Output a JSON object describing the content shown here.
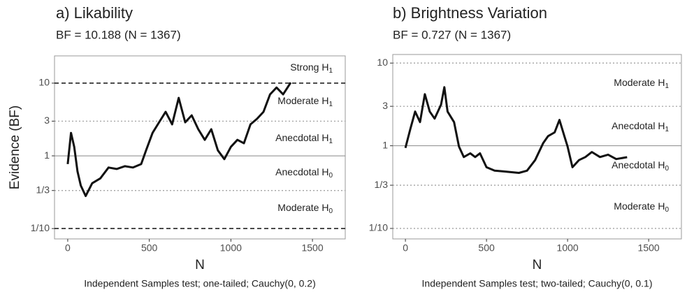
{
  "chart_data": [
    {
      "type": "line",
      "title": "a) Likability",
      "subtitle": "BF = 10.188 (N = 1367)",
      "ylabel": "Evidence (BF)",
      "xlabel": "N",
      "caption": "Independent Samples test; one-tailed; Cauchy(0, 0.2)",
      "log_y": true,
      "color": "#111111",
      "x": [
        0,
        20,
        40,
        60,
        80,
        110,
        150,
        200,
        250,
        300,
        350,
        400,
        450,
        480,
        520,
        560,
        600,
        640,
        680,
        720,
        760,
        800,
        840,
        880,
        920,
        960,
        1000,
        1040,
        1080,
        1120,
        1160,
        1200,
        1240,
        1280,
        1320,
        1367
      ],
      "values": [
        0.77,
        2.07,
        1.33,
        0.61,
        0.39,
        0.28,
        0.42,
        0.49,
        0.69,
        0.66,
        0.72,
        0.69,
        0.77,
        1.19,
        2.07,
        2.89,
        4.03,
        2.71,
        6.27,
        2.89,
        3.61,
        2.32,
        1.66,
        2.32,
        1.19,
        0.9,
        1.33,
        1.66,
        1.49,
        2.71,
        3.23,
        4.03,
        7.0,
        8.7,
        7.0,
        10.188
      ],
      "xlim": [
        -81,
        1701
      ],
      "xticks": [
        0,
        500,
        1000,
        1500
      ],
      "ylim": [
        0.072,
        23.7
      ],
      "yticks": [
        {
          "value": 0.1,
          "label": "1/10"
        },
        {
          "value": 0.3333,
          "label": "1/3"
        },
        1,
        3,
        10
      ],
      "reference_lines": [
        {
          "value": 10,
          "style": "dashed"
        },
        {
          "value": 3,
          "style": "dotted"
        },
        {
          "value": 1,
          "style": "solid"
        },
        {
          "value": 0.3333,
          "style": "dotted"
        },
        {
          "value": 0.1,
          "style": "dashed"
        }
      ],
      "annotations": [
        {
          "text": "Strong H",
          "sub": "1"
        },
        {
          "text": "Moderate H",
          "sub": "1"
        },
        {
          "text": "Anecdotal H",
          "sub": "1"
        },
        {
          "text": "Anecdotal H",
          "sub": "0"
        },
        {
          "text": "Moderate H",
          "sub": "0"
        }
      ]
    },
    {
      "type": "line",
      "title": "b) Brightness Variation",
      "subtitle": "BF = 0.727 (N = 1367)",
      "xlabel": "N",
      "caption": "Independent Samples test; two-tailed; Cauchy(0, 0.1)",
      "log_y": true,
      "color": "#111111",
      "x": [
        0,
        30,
        60,
        90,
        120,
        150,
        180,
        220,
        240,
        260,
        300,
        330,
        360,
        400,
        430,
        460,
        500,
        550,
        600,
        650,
        700,
        750,
        800,
        850,
        880,
        920,
        950,
        980,
        1000,
        1030,
        1070,
        1110,
        1150,
        1200,
        1250,
        1300,
        1367
      ],
      "values": [
        0.94,
        1.59,
        2.59,
        1.93,
        4.21,
        2.59,
        2.13,
        3.15,
        5.11,
        2.59,
        1.93,
        0.98,
        0.73,
        0.81,
        0.73,
        0.81,
        0.55,
        0.5,
        0.49,
        0.48,
        0.47,
        0.5,
        0.67,
        1.08,
        1.31,
        1.45,
        2.05,
        1.31,
        0.98,
        0.55,
        0.67,
        0.73,
        0.84,
        0.73,
        0.78,
        0.69,
        0.727
      ],
      "xlim": [
        -78,
        1702
      ],
      "xticks": [
        0,
        500,
        1000,
        1500
      ],
      "ylim": [
        0.0747,
        12.7
      ],
      "yticks": [
        {
          "value": 0.1,
          "label": "1/10"
        },
        {
          "value": 0.3333,
          "label": "1/3"
        },
        1,
        3,
        10
      ],
      "reference_lines": [
        {
          "value": 10,
          "style": "dotted"
        },
        {
          "value": 3,
          "style": "dotted"
        },
        {
          "value": 1,
          "style": "solid"
        },
        {
          "value": 0.3333,
          "style": "dotted"
        },
        {
          "value": 0.1,
          "style": "dotted"
        }
      ],
      "annotations": [
        {
          "text": "Moderate H",
          "sub": "1"
        },
        {
          "text": "Anecdotal H",
          "sub": "1"
        },
        {
          "text": "Anecdotal H",
          "sub": "0"
        },
        {
          "text": "Moderate H",
          "sub": "0"
        }
      ]
    }
  ]
}
